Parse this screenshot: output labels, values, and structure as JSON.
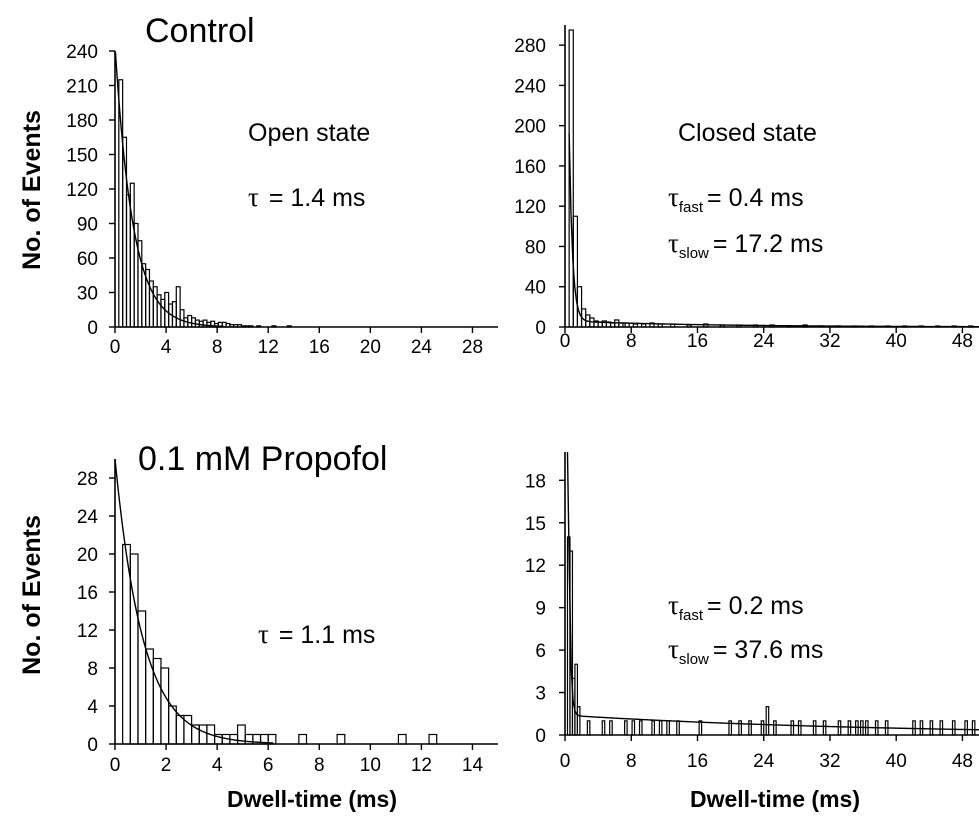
{
  "figure": {
    "ylabel": "No. of Events",
    "xlabel": "Dwell-time (ms)",
    "row_titles": [
      "Control",
      "0.1 mM Propofol"
    ]
  },
  "chart_data": [
    {
      "type": "bar",
      "title": "Control",
      "subtitle": "Open state",
      "annotation": {
        "symbol": "τ",
        "sub": "",
        "value": "= 1.4 ms"
      },
      "annotation2": null,
      "xlim": [
        0,
        30
      ],
      "ylim": [
        0,
        240
      ],
      "xticks": [
        0,
        4,
        8,
        12,
        16,
        20,
        24,
        28
      ],
      "yticks": [
        0,
        30,
        60,
        90,
        120,
        150,
        180,
        210,
        240
      ],
      "bin_width": 0.3,
      "x": [
        0.15,
        0.45,
        0.75,
        1.05,
        1.35,
        1.65,
        1.95,
        2.25,
        2.55,
        2.85,
        3.15,
        3.45,
        3.75,
        4.05,
        4.35,
        4.65,
        4.95,
        5.25,
        5.55,
        5.85,
        6.15,
        6.45,
        6.75,
        7.05,
        7.35,
        7.65,
        7.95,
        8.25,
        8.55,
        8.85,
        9.15,
        9.45,
        9.75,
        10.05,
        10.35,
        10.65,
        11.25,
        12.45,
        13.65
      ],
      "values": [
        0,
        215,
        165,
        115,
        125,
        90,
        75,
        55,
        50,
        40,
        35,
        28,
        24,
        30,
        20,
        22,
        35,
        15,
        8,
        10,
        8,
        6,
        5,
        6,
        4,
        5,
        3,
        4,
        4,
        3,
        2,
        2,
        2,
        1,
        1,
        1,
        1,
        1,
        1
      ],
      "fit": {
        "amplitudes": [
          245
        ],
        "taus": [
          1.4
        ],
        "x_start": 0.0,
        "x_end": 8.5
      }
    },
    {
      "type": "bar",
      "title": "",
      "subtitle": "Closed state",
      "annotation": {
        "symbol": "τ",
        "sub": "fast",
        "value": "= 0.4 ms"
      },
      "annotation2": {
        "symbol": "τ",
        "sub": "slow",
        "value": "= 17.2 ms"
      },
      "xlim": [
        0,
        50
      ],
      "ylim": [
        0,
        300
      ],
      "xticks": [
        0,
        8,
        16,
        24,
        32,
        40,
        48
      ],
      "yticks": [
        0,
        40,
        80,
        120,
        160,
        200,
        240,
        280
      ],
      "bin_width": 0.5,
      "x": [
        0.25,
        0.75,
        1.25,
        1.75,
        2.25,
        2.75,
        3.25,
        3.75,
        4.25,
        4.75,
        5.25,
        5.75,
        6.25,
        6.75,
        7.5,
        8.5,
        9.5,
        10.5,
        11.5,
        13,
        15,
        17,
        19,
        21,
        23,
        25,
        27,
        29,
        31,
        33,
        35,
        37,
        39,
        41,
        43,
        45,
        47,
        49
      ],
      "values": [
        0,
        295,
        110,
        40,
        18,
        12,
        9,
        6,
        5,
        6,
        5,
        4,
        7,
        4,
        4,
        3,
        3,
        4,
        3,
        3,
        2,
        3,
        2,
        2,
        2,
        2,
        1,
        2,
        1,
        1,
        1,
        1,
        1,
        1,
        1,
        1,
        1,
        1
      ],
      "fit": {
        "amplitudes": [
          650,
          6
        ],
        "taus": [
          0.4,
          17.2
        ],
        "x_start": 0.5,
        "x_end": 50
      }
    },
    {
      "type": "bar",
      "title": "0.1 mM Propofol",
      "subtitle": "",
      "annotation": {
        "symbol": "τ",
        "sub": "",
        "value": "= 1.1 ms"
      },
      "annotation2": null,
      "xlim": [
        0,
        15
      ],
      "ylim": [
        0,
        30
      ],
      "xticks": [
        0,
        2,
        4,
        6,
        8,
        10,
        12,
        14
      ],
      "yticks": [
        0,
        4,
        8,
        12,
        16,
        20,
        24,
        28
      ],
      "bin_width": 0.3,
      "x": [
        0.15,
        0.45,
        0.75,
        1.05,
        1.35,
        1.65,
        1.95,
        2.25,
        2.55,
        2.85,
        3.15,
        3.45,
        3.75,
        4.05,
        4.35,
        4.65,
        4.95,
        5.25,
        5.55,
        5.85,
        6.15,
        7.35,
        8.85,
        11.25,
        12.45
      ],
      "values": [
        0,
        21,
        20,
        14,
        10,
        9,
        8,
        4,
        3,
        3,
        2,
        2,
        2,
        1,
        1,
        1,
        2,
        1,
        1,
        1,
        1,
        1,
        1,
        1,
        1
      ],
      "fit": {
        "amplitudes": [
          30
        ],
        "taus": [
          1.1
        ],
        "x_start": 0.0,
        "x_end": 6.2
      }
    },
    {
      "type": "bar",
      "title": "",
      "subtitle": "",
      "annotation": {
        "symbol": "τ",
        "sub": "fast",
        "value": "= 0.2 ms"
      },
      "annotation2": {
        "symbol": "τ",
        "sub": "slow",
        "value": "= 37.6 ms"
      },
      "xlim": [
        0,
        50
      ],
      "ylim": [
        0,
        20
      ],
      "xticks": [
        0,
        8,
        16,
        24,
        32,
        40,
        48
      ],
      "yticks": [
        0,
        3,
        6,
        9,
        12,
        15,
        18
      ],
      "bin_width": 0.3,
      "x": [
        0.45,
        0.75,
        1.05,
        1.35,
        1.65,
        2.85,
        4.65,
        5.55,
        7.35,
        8.25,
        9.15,
        10.65,
        11.55,
        12.45,
        13.65,
        16.35,
        19.95,
        21.15,
        22.35,
        23.85,
        24.45,
        25.35,
        27.45,
        28.35,
        30.15,
        31.35,
        33.15,
        34.35,
        35.25,
        35.85,
        36.45,
        37.65,
        38.85,
        42.15,
        43.05,
        44.25,
        45.45,
        46.95,
        48.45,
        49.35
      ],
      "values": [
        14,
        13,
        4,
        5,
        2,
        1,
        1,
        1,
        1,
        1,
        1,
        1,
        1,
        1,
        1,
        1,
        1,
        1,
        1,
        1,
        2,
        1,
        1,
        1,
        1,
        1,
        1,
        1,
        1,
        1,
        1,
        1,
        1,
        1,
        1,
        1,
        1,
        1,
        1,
        1
      ],
      "fit": {
        "amplitudes": [
          140,
          1.4
        ],
        "taus": [
          0.2,
          37.6
        ],
        "x_start": 0.3,
        "x_end": 50
      }
    }
  ]
}
